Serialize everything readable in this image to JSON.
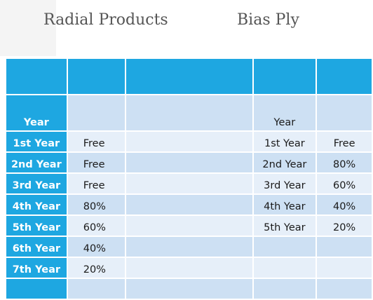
{
  "headings": {
    "radial": "Radial Products",
    "bias": "Bias Ply"
  },
  "table": {
    "radial_year_header": "Year",
    "bias_year_header": "Year",
    "rows": [
      {
        "radial_year": "1st Year",
        "radial_value": "Free",
        "bias_year": "1st Year",
        "bias_value": "Free"
      },
      {
        "radial_year": "2nd Year",
        "radial_value": "Free",
        "bias_year": "2nd Year",
        "bias_value": "80%"
      },
      {
        "radial_year": "3rd Year",
        "radial_value": "Free",
        "bias_year": "3rd Year",
        "bias_value": "60%"
      },
      {
        "radial_year": "4th Year",
        "radial_value": "80%",
        "bias_year": "4th Year",
        "bias_value": "40%"
      },
      {
        "radial_year": "5th Year",
        "radial_value": "60%",
        "bias_year": "5th Year",
        "bias_value": "20%"
      },
      {
        "radial_year": "6th Year",
        "radial_value": "40%",
        "bias_year": "",
        "bias_value": ""
      },
      {
        "radial_year": "7th Year",
        "radial_value": "20%",
        "bias_year": "",
        "bias_value": ""
      },
      {
        "radial_year": "",
        "radial_value": "",
        "bias_year": "",
        "bias_value": ""
      }
    ]
  }
}
